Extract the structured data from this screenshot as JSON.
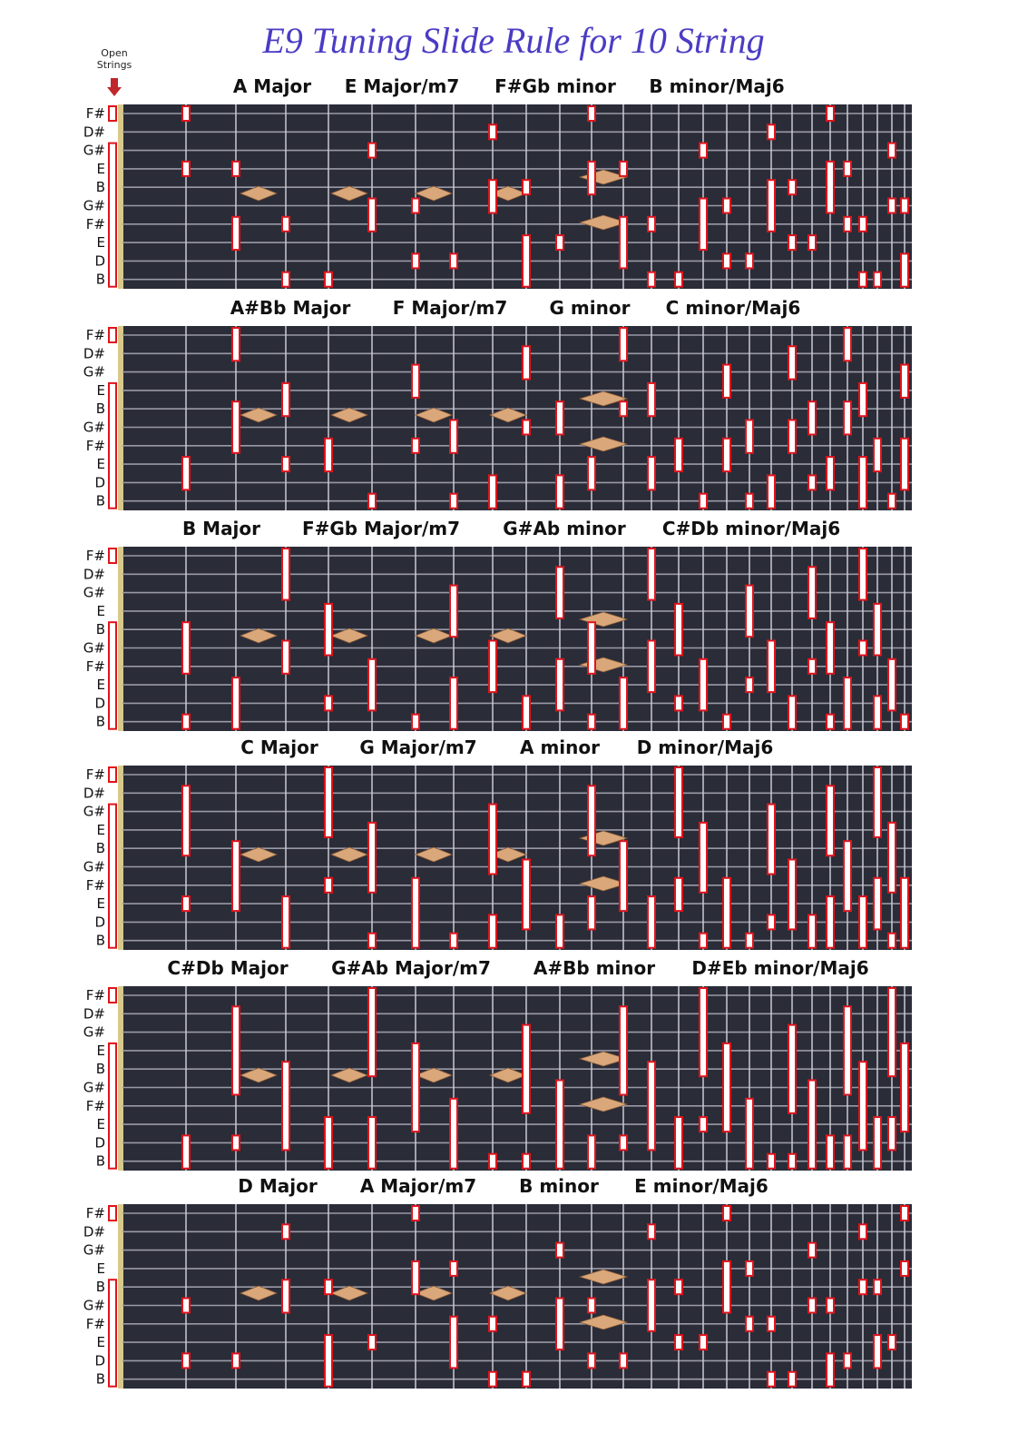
{
  "header": {
    "title": "E9 Tuning Slide Rule for 10 String",
    "open_strings_label": "Open Strings"
  },
  "string_names": [
    "F#",
    "D#",
    "G#",
    "E",
    "B",
    "G#",
    "F#",
    "E",
    "D",
    "B"
  ],
  "panels": [
    {
      "chords": [
        "A Major",
        "E Major/m7",
        "F#Gb minor",
        "B minor/Maj6"
      ]
    },
    {
      "chords": [
        "A#Bb Major",
        "F Major/m7",
        "G minor",
        "C minor/Maj6"
      ]
    },
    {
      "chords": [
        "B Major",
        "F#Gb Major/m7",
        "G#Ab minor",
        "C#Db minor/Maj6"
      ]
    },
    {
      "chords": [
        "C Major",
        "G Major/m7",
        "A minor",
        "D minor/Maj6"
      ]
    },
    {
      "chords": [
        "C#Db Major",
        "G#Ab Major/m7",
        "A#Bb minor",
        "D#Eb minor/Maj6"
      ]
    },
    {
      "chords": [
        "D Major",
        "A Major/m7",
        "B minor",
        "E minor/Maj6"
      ]
    }
  ]
}
